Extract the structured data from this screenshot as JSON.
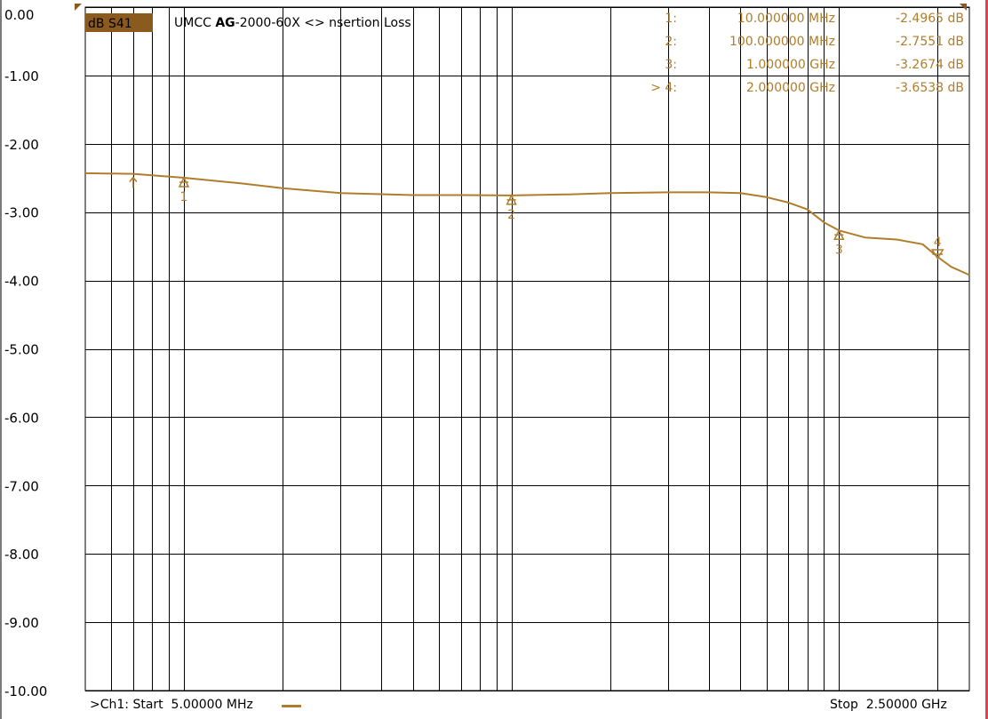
{
  "header": {
    "trace_badge": "dB S41",
    "title_prefix": "UMCC ",
    "title_model": "AG",
    "title_suffix": "-2000-60X <> nsertion Loss"
  },
  "markers": [
    {
      "num": "1:",
      "freq": "10.000000 MHz",
      "value": "-2.4965 dB",
      "active": false
    },
    {
      "num": "2:",
      "freq": "100.000000 MHz",
      "value": "-2.7551 dB",
      "active": false
    },
    {
      "num": "3:",
      "freq": "1.000000 GHz",
      "value": "-3.2674 dB",
      "active": false
    },
    {
      "num": "> 4:",
      "freq": "2.000000 GHz",
      "value": "-3.6538 dB",
      "active": true
    }
  ],
  "footer": {
    "start": ">Ch1: Start  5.00000 MHz",
    "stop": "Stop  2.50000 GHz"
  },
  "colors": {
    "trace": "#b07d2b",
    "badge_bg": "#8b5a1e",
    "grid": "#000000"
  },
  "chart_data": {
    "type": "line",
    "xscale": "log",
    "xlim": [
      5000000,
      2500000000
    ],
    "ylim": [
      -10,
      0
    ],
    "yticks": [
      "0.00",
      "-1.00",
      "-2.00",
      "-3.00",
      "-4.00",
      "-5.00",
      "-6.00",
      "-7.00",
      "-8.00",
      "-9.00",
      "-10.00"
    ],
    "grid": true,
    "series": [
      {
        "name": "dB S41",
        "x": [
          5000000,
          7000000,
          10000000,
          15000000,
          20000000,
          30000000,
          50000000,
          70000000,
          100000000,
          150000000,
          200000000,
          300000000,
          400000000,
          500000000,
          600000000,
          700000000,
          800000000,
          900000000,
          1000000000,
          1200000000,
          1500000000,
          1800000000,
          2000000000,
          2200000000,
          2500000000
        ],
        "y": [
          -2.43,
          -2.44,
          -2.4965,
          -2.58,
          -2.65,
          -2.72,
          -2.75,
          -2.75,
          -2.7551,
          -2.74,
          -2.72,
          -2.71,
          -2.71,
          -2.72,
          -2.78,
          -2.86,
          -2.96,
          -3.15,
          -3.2674,
          -3.37,
          -3.4,
          -3.47,
          -3.6538,
          -3.8,
          -3.92
        ]
      }
    ],
    "marker_points": [
      {
        "label": "1",
        "x": 10000000,
        "y": -2.4965
      },
      {
        "label": "2",
        "x": 100000000,
        "y": -2.7551
      },
      {
        "label": "3",
        "x": 1000000000,
        "y": -3.2674
      },
      {
        "label": "4",
        "x": 2000000000,
        "y": -3.6538
      }
    ],
    "ref_marker": {
      "x": 7000000,
      "y": -2.44
    }
  }
}
